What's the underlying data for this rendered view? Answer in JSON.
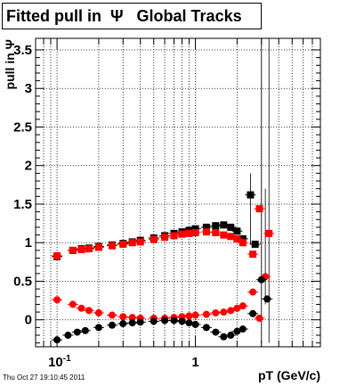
{
  "title": "Fitted pull in  Ψ   Global Tracks",
  "timestamp": "Thu Oct 27 19:10:45 2011",
  "chart_data": {
    "type": "scatter",
    "title": "Fitted pull in  Ψ   Global Tracks",
    "xlabel": "pT (GeV/c)",
    "ylabel": "pull in Ψ",
    "xscale": "log",
    "xlim": [
      0.07,
      8
    ],
    "ylim": [
      -0.35,
      3.65
    ],
    "grid": true,
    "x_tick_labels": [
      "10^-1",
      "1"
    ],
    "y_tick_labels": [
      "0",
      "0.5",
      "1",
      "1.5",
      "2",
      "2.5",
      "3",
      "3.5"
    ],
    "series": [
      {
        "color": "#000000",
        "marker": "square",
        "points": [
          [
            0.1,
            0.82
          ],
          [
            0.13,
            0.9
          ],
          [
            0.15,
            0.92
          ],
          [
            0.17,
            0.93
          ],
          [
            0.2,
            0.95
          ],
          [
            0.25,
            0.97
          ],
          [
            0.3,
            0.99
          ],
          [
            0.35,
            1.01
          ],
          [
            0.4,
            1.03
          ],
          [
            0.5,
            1.06
          ],
          [
            0.6,
            1.09
          ],
          [
            0.7,
            1.12
          ],
          [
            0.8,
            1.14
          ],
          [
            0.9,
            1.16
          ],
          [
            1.0,
            1.18
          ],
          [
            1.2,
            1.2
          ],
          [
            1.4,
            1.22
          ],
          [
            1.6,
            1.23
          ],
          [
            1.8,
            1.2
          ],
          [
            2.0,
            1.15
          ],
          [
            2.2,
            1.05
          ],
          [
            2.5,
            1.62
          ],
          [
            2.7,
            0.98
          ]
        ]
      },
      {
        "color": "#ff0000",
        "marker": "square",
        "points": [
          [
            0.1,
            0.83
          ],
          [
            0.13,
            0.9
          ],
          [
            0.15,
            0.91
          ],
          [
            0.17,
            0.92
          ],
          [
            0.2,
            0.94
          ],
          [
            0.25,
            0.96
          ],
          [
            0.3,
            0.98
          ],
          [
            0.35,
            1.0
          ],
          [
            0.4,
            1.01
          ],
          [
            0.5,
            1.04
          ],
          [
            0.6,
            1.07
          ],
          [
            0.7,
            1.09
          ],
          [
            0.8,
            1.11
          ],
          [
            0.9,
            1.12
          ],
          [
            1.0,
            1.13
          ],
          [
            1.2,
            1.14
          ],
          [
            1.4,
            1.13
          ],
          [
            1.6,
            1.1
          ],
          [
            1.8,
            1.08
          ],
          [
            2.0,
            1.05
          ],
          [
            2.2,
            1.0
          ],
          [
            2.6,
            0.85
          ],
          [
            2.9,
            1.44
          ],
          [
            3.4,
            1.12
          ]
        ]
      },
      {
        "color": "#ff0000",
        "marker": "circle",
        "points": [
          [
            0.1,
            0.26
          ],
          [
            0.13,
            0.2
          ],
          [
            0.15,
            0.15
          ],
          [
            0.17,
            0.12
          ],
          [
            0.2,
            0.09
          ],
          [
            0.25,
            0.06
          ],
          [
            0.3,
            0.04
          ],
          [
            0.35,
            0.03
          ],
          [
            0.4,
            0.02
          ],
          [
            0.5,
            0.02
          ],
          [
            0.6,
            0.02
          ],
          [
            0.7,
            0.03
          ],
          [
            0.8,
            0.04
          ],
          [
            0.9,
            0.05
          ],
          [
            1.0,
            0.06
          ],
          [
            1.2,
            0.07
          ],
          [
            1.4,
            0.09
          ],
          [
            1.6,
            0.1
          ],
          [
            1.8,
            0.12
          ],
          [
            2.0,
            0.15
          ],
          [
            2.2,
            0.18
          ],
          [
            2.6,
            0.36
          ],
          [
            2.9,
            0.02
          ],
          [
            3.2,
            0.56
          ]
        ]
      },
      {
        "color": "#000000",
        "marker": "circle",
        "points": [
          [
            0.1,
            -0.26
          ],
          [
            0.12,
            -0.2
          ],
          [
            0.14,
            -0.16
          ],
          [
            0.16,
            -0.14
          ],
          [
            0.2,
            -0.1
          ],
          [
            0.25,
            -0.07
          ],
          [
            0.3,
            -0.05
          ],
          [
            0.35,
            -0.04
          ],
          [
            0.4,
            -0.03
          ],
          [
            0.5,
            -0.02
          ],
          [
            0.6,
            -0.01
          ],
          [
            0.7,
            -0.01
          ],
          [
            0.8,
            -0.02
          ],
          [
            0.9,
            -0.04
          ],
          [
            1.0,
            -0.06
          ],
          [
            1.2,
            -0.1
          ],
          [
            1.4,
            -0.16
          ],
          [
            1.6,
            -0.22
          ],
          [
            1.8,
            -0.2
          ],
          [
            2.0,
            -0.15
          ],
          [
            2.2,
            -0.12
          ],
          [
            2.6,
            0.08
          ],
          [
            3.0,
            0.52
          ],
          [
            3.3,
            0.27
          ]
        ]
      }
    ]
  }
}
